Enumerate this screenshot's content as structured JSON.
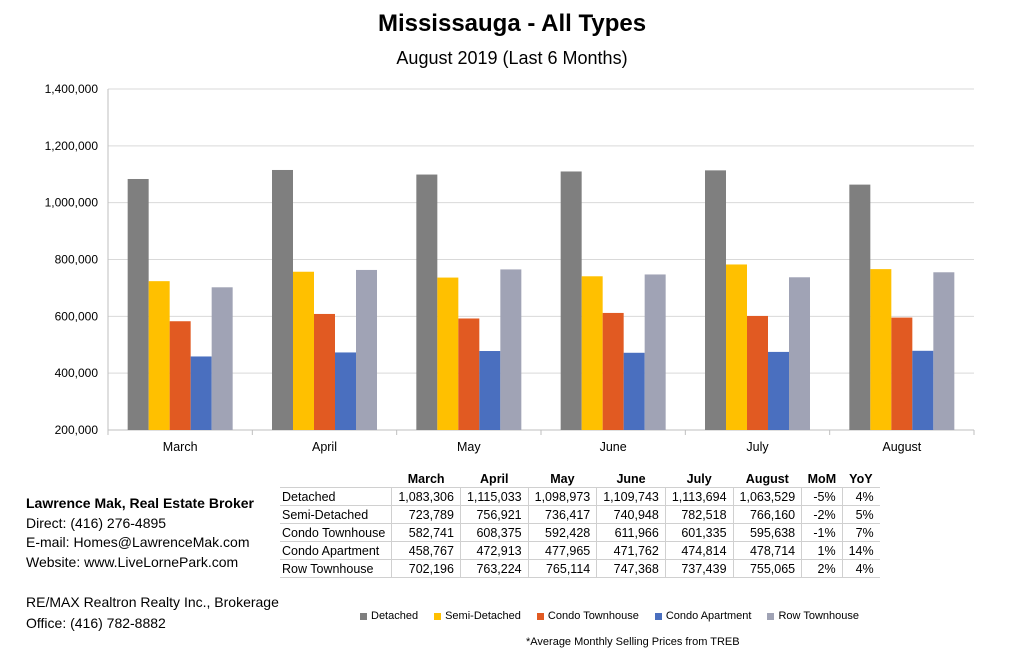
{
  "chart_data": {
    "type": "bar",
    "title": "Mississauga - All Types",
    "subtitle": "August 2019 (Last 6 Months)",
    "categories": [
      "March",
      "April",
      "May",
      "June",
      "July",
      "August"
    ],
    "series": [
      {
        "name": "Detached",
        "color": "#7f7f7f",
        "values": [
          1083306,
          1115033,
          1098973,
          1109743,
          1113694,
          1063529
        ]
      },
      {
        "name": "Semi-Detached",
        "color": "#ffc000",
        "values": [
          723789,
          756921,
          736417,
          740948,
          782518,
          766160
        ]
      },
      {
        "name": "Condo Townhouse",
        "color": "#e15a22",
        "values": [
          582741,
          608375,
          592428,
          611966,
          601335,
          595638
        ]
      },
      {
        "name": "Condo Apartment",
        "color": "#4a6fbf",
        "values": [
          458767,
          472913,
          477965,
          471762,
          474814,
          478714
        ]
      },
      {
        "name": "Row Townhouse",
        "color": "#a0a3b5",
        "values": [
          702196,
          763224,
          765114,
          747368,
          737439,
          755065
        ]
      }
    ],
    "ylim": [
      200000,
      1400000
    ],
    "yticks": [
      "200,000",
      "400,000",
      "600,000",
      "800,000",
      "1,000,000",
      "1,200,000",
      "1,400,000"
    ],
    "ytick_values": [
      200000,
      400000,
      600000,
      800000,
      1000000,
      1200000,
      1400000
    ],
    "xlabel": "",
    "ylabel": "",
    "grid": true,
    "legend_position": "bottom"
  },
  "table": {
    "headers": [
      "",
      "March",
      "April",
      "May",
      "June",
      "July",
      "August",
      "MoM",
      "YoY"
    ],
    "rows": [
      [
        "Detached",
        "1,083,306",
        "1,115,033",
        "1,098,973",
        "1,109,743",
        "1,113,694",
        "1,063,529",
        "-5%",
        "4%"
      ],
      [
        "Semi-Detached",
        "723,789",
        "756,921",
        "736,417",
        "740,948",
        "782,518",
        "766,160",
        "-2%",
        "5%"
      ],
      [
        "Condo Townhouse",
        "582,741",
        "608,375",
        "592,428",
        "611,966",
        "601,335",
        "595,638",
        "-1%",
        "7%"
      ],
      [
        "Condo Apartment",
        "458,767",
        "472,913",
        "477,965",
        "471,762",
        "474,814",
        "478,714",
        "1%",
        "14%"
      ],
      [
        "Row Townhouse",
        "702,196",
        "763,224",
        "765,114",
        "747,368",
        "737,439",
        "755,065",
        "2%",
        "4%"
      ]
    ]
  },
  "contact": {
    "name": "Lawrence Mak, Real Estate Broker",
    "direct": "Direct:  (416) 276-4895",
    "email": "E-mail:  Homes@LawrenceMak.com",
    "website": "Website: www.LiveLornePark.com"
  },
  "brokerage": {
    "name": "RE/MAX Realtron Realty Inc., Brokerage",
    "office": "Office: (416) 782-8882"
  },
  "footnote": "*Average Monthly Selling Prices  from TREB"
}
